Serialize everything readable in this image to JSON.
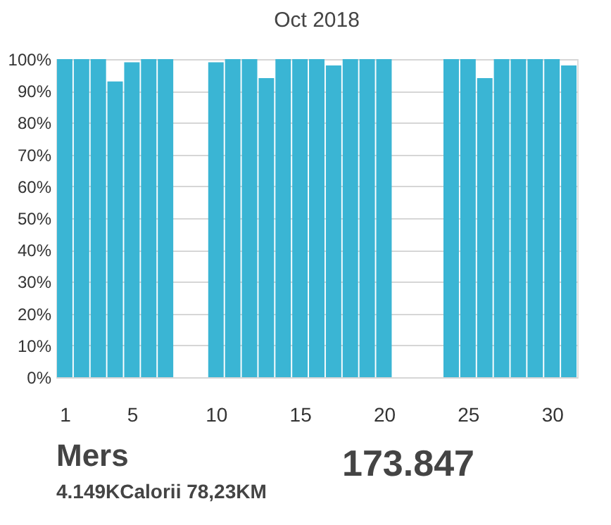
{
  "chart_data": {
    "type": "bar",
    "title": "Oct 2018",
    "x": [
      1,
      2,
      3,
      4,
      5,
      6,
      7,
      8,
      9,
      10,
      11,
      12,
      13,
      14,
      15,
      16,
      17,
      18,
      19,
      20,
      21,
      22,
      23,
      24,
      25,
      26,
      27,
      28,
      29,
      30,
      31
    ],
    "values": [
      100,
      100,
      100,
      93,
      99,
      100,
      100,
      null,
      null,
      99,
      100,
      100,
      94,
      100,
      100,
      100,
      98,
      100,
      100,
      100,
      null,
      null,
      null,
      100,
      100,
      94,
      100,
      100,
      100,
      100,
      98
    ],
    "color": "#3ab5d4",
    "xlim": [
      0.5,
      31.5
    ],
    "xticks": [
      1,
      5,
      10,
      15,
      20,
      25,
      30
    ],
    "ylim": [
      0,
      100
    ],
    "yticks": [
      {
        "value": 0,
        "label": "0%"
      },
      {
        "value": 10,
        "label": "10%"
      },
      {
        "value": 20,
        "label": "20%"
      },
      {
        "value": 30,
        "label": "30%"
      },
      {
        "value": 40,
        "label": "40%"
      },
      {
        "value": 50,
        "label": "50%"
      },
      {
        "value": 60,
        "label": "60%"
      },
      {
        "value": 70,
        "label": "70%"
      },
      {
        "value": 80,
        "label": "80%"
      },
      {
        "value": 90,
        "label": "90%"
      },
      {
        "value": 100,
        "label": "100%"
      }
    ],
    "grid": "y",
    "legend": false,
    "annotations": [
      "Mers",
      "4.149KCalorii   78,23KM",
      "173.847"
    ]
  }
}
